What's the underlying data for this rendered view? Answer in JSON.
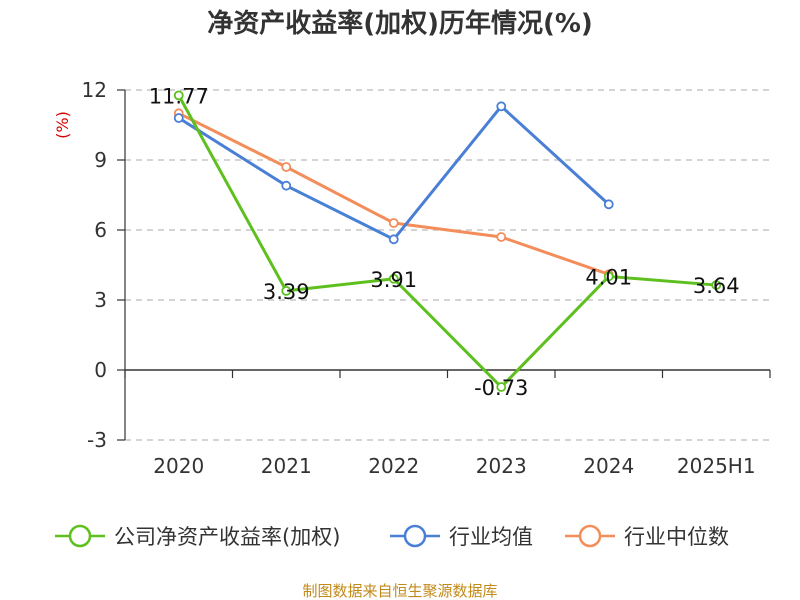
{
  "chart_data": {
    "type": "line",
    "title": "净资产收益率(加权)历年情况(%)",
    "ylabel": "(%)",
    "xlabel": "",
    "categories": [
      "2020",
      "2021",
      "2022",
      "2023",
      "2024",
      "2025H1"
    ],
    "ylim": [
      -3,
      12
    ],
    "yticks": [
      12,
      9,
      6,
      3,
      0,
      -3
    ],
    "grid": true,
    "legend_position": "bottom",
    "series": [
      {
        "name": "公司净资产收益率(加权)",
        "color": "#5ec01e",
        "values": [
          11.77,
          3.39,
          3.91,
          -0.73,
          4.01,
          3.64
        ],
        "labels": [
          "11.77",
          "3.39",
          "3.91",
          "-0.73",
          "4.01",
          "3.64"
        ]
      },
      {
        "name": "行业均值",
        "color": "#4a7fd6",
        "values": [
          10.8,
          7.9,
          5.6,
          11.3,
          7.1,
          null
        ]
      },
      {
        "name": "行业中位数",
        "color": "#f38d5a",
        "values": [
          11.0,
          8.7,
          6.3,
          5.7,
          4.1,
          null
        ]
      }
    ]
  },
  "source_text": "制图数据来自恒生聚源数据库"
}
